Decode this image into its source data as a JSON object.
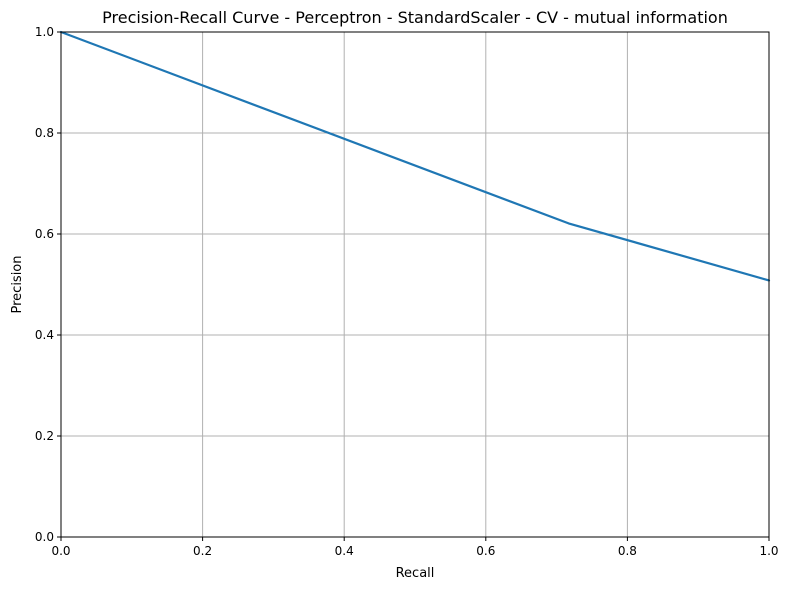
{
  "chart_data": {
    "type": "line",
    "title": "Precision-Recall Curve - Perceptron - StandardScaler - CV - mutual information",
    "xlabel": "Recall",
    "ylabel": "Precision",
    "xlim": [
      0.0,
      1.0
    ],
    "ylim": [
      0.0,
      1.0
    ],
    "xticks": [
      0.0,
      0.2,
      0.4,
      0.6,
      0.8,
      1.0
    ],
    "yticks": [
      0.0,
      0.2,
      0.4,
      0.6,
      0.8,
      1.0
    ],
    "xtick_labels": [
      "0.0",
      "0.2",
      "0.4",
      "0.6",
      "0.8",
      "1.0"
    ],
    "ytick_labels": [
      "0.0",
      "0.2",
      "0.4",
      "0.6",
      "0.8",
      "1.0"
    ],
    "grid": true,
    "series": [
      {
        "color": "#1f77b4",
        "x": [
          0.0,
          0.717,
          1.0
        ],
        "y": [
          1.0,
          0.621,
          0.508
        ]
      }
    ]
  }
}
